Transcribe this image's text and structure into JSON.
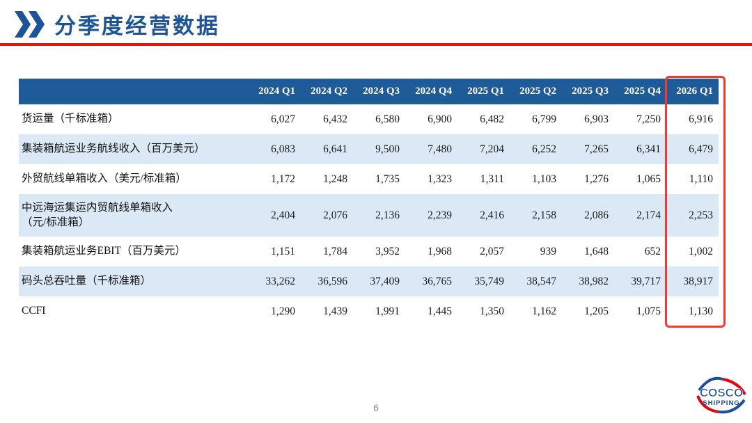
{
  "slide": {
    "title": "分季度经营数据",
    "page_number": "6"
  },
  "colors": {
    "title_blue": "#1C5497",
    "rule_red": "#F01010",
    "table_header_bg": "#1E5B98",
    "table_alt_row_bg": "#DBE9F7",
    "highlight_border_red": "#F03A2D",
    "logo_blue": "#1B4E9B",
    "logo_red": "#E60012"
  },
  "table": {
    "columns": [
      "2024 Q1",
      "2024 Q2",
      "2024 Q3",
      "2024 Q4",
      "2025 Q1",
      "2025 Q2",
      "2025 Q3",
      "2025 Q4",
      "2026 Q1"
    ],
    "highlighted_column": "2026 Q1",
    "rows": [
      {
        "label": "货运量（千标准箱）",
        "values": [
          "6,027",
          "6,432",
          "6,580",
          "6,900",
          "6,482",
          "6,799",
          "6,903",
          "7,250",
          "6,916"
        ]
      },
      {
        "label": "集装箱航运业务航线收入（百万美元）",
        "values": [
          "6,083",
          "6,641",
          "9,500",
          "7,480",
          "7,204",
          "6,252",
          "7,265",
          "6,341",
          "6,479"
        ]
      },
      {
        "label": "外贸航线单箱收入（美元/标准箱）",
        "values": [
          "1,172",
          "1,248",
          "1,735",
          "1,323",
          "1,311",
          "1,103",
          "1,276",
          "1,065",
          "1,110"
        ]
      },
      {
        "label": "中远海运集运内贸航线单箱收入\n（元/标准箱）",
        "values": [
          "2,404",
          "2,076",
          "2,136",
          "2,239",
          "2,416",
          "2,158",
          "2,086",
          "2,174",
          "2,253"
        ]
      },
      {
        "label": "集装箱航运业务EBIT（百万美元）",
        "values": [
          "1,151",
          "1,784",
          "3,952",
          "1,968",
          "2,057",
          "939",
          "1,648",
          "652",
          "1,002"
        ]
      },
      {
        "label": "码头总吞吐量（千标准箱）",
        "values": [
          "33,262",
          "36,596",
          "37,409",
          "36,765",
          "35,749",
          "38,547",
          "38,982",
          "39,717",
          "38,917"
        ]
      },
      {
        "label": "CCFI",
        "values": [
          "1,290",
          "1,439",
          "1,991",
          "1,445",
          "1,350",
          "1,162",
          "1,205",
          "1,075",
          "1,130"
        ]
      }
    ]
  },
  "logo": {
    "line1": "COSCO",
    "line2": "SHIPPING"
  }
}
